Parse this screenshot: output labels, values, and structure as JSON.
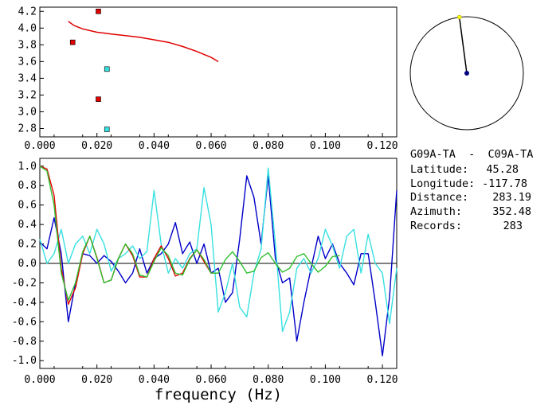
{
  "info": {
    "station_pair": "G09A-TA  -  C09A-TA",
    "latitude_label": "Latitude:",
    "latitude_value": "45.28",
    "longitude_label": "Longitude:",
    "longitude_value": "-117.78",
    "distance_label": "Distance:",
    "distance_value": "283.19",
    "azimuth_label": "Azimuth:",
    "azimuth_value": "352.48",
    "records_label": "Records:",
    "records_value": "283"
  },
  "colors": {
    "red": "#e00000",
    "blue": "#0000c8",
    "cyan": "#38e0e0",
    "green": "#30c030",
    "yellow": "#ffff00",
    "navy": "#000080"
  },
  "chart_data": [
    {
      "type": "scatter",
      "xlabel": "",
      "ylabel": "",
      "xlim": [
        0,
        0.125
      ],
      "ylim": [
        2.7,
        4.25
      ],
      "x_ticks": [
        "0.000",
        "0.020",
        "0.040",
        "0.060",
        "0.080",
        "0.100",
        "0.120"
      ],
      "y_ticks": [
        "2.8",
        "3.0",
        "3.2",
        "3.4",
        "3.6",
        "3.8",
        "4.0",
        "4.2"
      ],
      "curve": {
        "x": [
          0.01,
          0.012,
          0.015,
          0.02,
          0.025,
          0.03,
          0.035,
          0.04,
          0.045,
          0.05,
          0.055,
          0.06,
          0.0625
        ],
        "y": [
          4.08,
          4.03,
          3.99,
          3.95,
          3.93,
          3.91,
          3.89,
          3.86,
          3.83,
          3.78,
          3.72,
          3.65,
          3.6
        ]
      },
      "red_points": {
        "x": [
          0.0115,
          0.0205,
          0.0205
        ],
        "y": [
          3.83,
          4.2,
          3.15
        ]
      },
      "cyan_points": {
        "x": [
          0.0235,
          0.0235
        ],
        "y": [
          3.51,
          2.79
        ]
      }
    },
    {
      "type": "line",
      "xlabel": "frequency (Hz)",
      "ylabel": "",
      "xlim": [
        0,
        0.125
      ],
      "ylim": [
        -1.08,
        1.08
      ],
      "x_ticks": [
        "0.000",
        "0.020",
        "0.040",
        "0.060",
        "0.080",
        "0.100",
        "0.120"
      ],
      "y_ticks": [
        "1.0",
        "0.8",
        "0.6",
        "0.4",
        "0.2",
        "0.0",
        "-0.2",
        "-0.4",
        "-0.6",
        "-0.8",
        "-1.0"
      ],
      "series": [
        {
          "color": "blue",
          "x": [
            0.0,
            0.0025,
            0.005,
            0.0075,
            0.01,
            0.0125,
            0.015,
            0.0175,
            0.02,
            0.0225,
            0.025,
            0.0275,
            0.03,
            0.0325,
            0.035,
            0.0375,
            0.04,
            0.0425,
            0.045,
            0.0475,
            0.05,
            0.0525,
            0.055,
            0.0575,
            0.06,
            0.0625,
            0.065,
            0.0675,
            0.07,
            0.0725,
            0.075,
            0.0775,
            0.08,
            0.0825,
            0.085,
            0.0875,
            0.09,
            0.0925,
            0.095,
            0.0975,
            0.1,
            0.1025,
            0.105,
            0.1075,
            0.11,
            0.1125,
            0.115,
            0.1175,
            0.12,
            0.1225,
            0.125
          ],
          "y": [
            0.22,
            0.15,
            0.47,
            0.1,
            -0.6,
            -0.2,
            0.1,
            0.08,
            0.0,
            0.08,
            0.02,
            -0.08,
            -0.2,
            -0.1,
            0.15,
            -0.1,
            0.05,
            0.1,
            0.2,
            0.42,
            0.1,
            0.22,
            0.0,
            0.2,
            -0.1,
            -0.05,
            -0.4,
            -0.3,
            0.25,
            0.9,
            0.68,
            0.2,
            0.9,
            0.05,
            -0.2,
            -0.15,
            -0.8,
            -0.4,
            -0.05,
            0.28,
            0.05,
            0.2,
            0.0,
            -0.1,
            -0.22,
            0.1,
            0.1,
            -0.4,
            -0.95,
            -0.35,
            0.75
          ]
        },
        {
          "color": "cyan",
          "x": [
            0.0,
            0.0025,
            0.005,
            0.0075,
            0.01,
            0.0125,
            0.015,
            0.0175,
            0.02,
            0.0225,
            0.025,
            0.0275,
            0.03,
            0.0325,
            0.035,
            0.0375,
            0.04,
            0.0425,
            0.045,
            0.0475,
            0.05,
            0.0525,
            0.055,
            0.0575,
            0.06,
            0.0625,
            0.065,
            0.0675,
            0.07,
            0.0725,
            0.075,
            0.0775,
            0.08,
            0.0825,
            0.085,
            0.0875,
            0.09,
            0.0925,
            0.095,
            0.0975,
            0.1,
            0.1025,
            0.105,
            0.1075,
            0.11,
            0.1125,
            0.115,
            0.1175,
            0.12,
            0.1225,
            0.125
          ],
          "y": [
            0.25,
            0.0,
            0.1,
            0.35,
            0.0,
            0.2,
            0.28,
            0.1,
            0.35,
            0.2,
            -0.08,
            0.05,
            0.1,
            0.18,
            0.05,
            0.12,
            0.75,
            0.2,
            -0.1,
            0.05,
            -0.05,
            0.1,
            0.15,
            0.78,
            0.4,
            -0.5,
            -0.3,
            0.0,
            -0.45,
            -0.55,
            -0.1,
            0.15,
            0.98,
            0.2,
            -0.7,
            -0.5,
            -0.05,
            0.05,
            -0.1,
            0.05,
            0.35,
            0.18,
            -0.05,
            0.28,
            0.35,
            -0.1,
            0.3,
            0.0,
            -0.1,
            -0.62,
            -0.05
          ]
        },
        {
          "color": "red",
          "x": [
            0.0,
            0.0025,
            0.005,
            0.0075,
            0.01,
            0.0125,
            0.015,
            0.0175,
            0.02,
            0.0225,
            0.025,
            0.0275,
            0.03,
            0.0325,
            0.035,
            0.0375,
            0.04,
            0.0425,
            0.045,
            0.0475,
            0.05,
            0.0525,
            0.055,
            0.0575,
            0.06,
            0.0625
          ],
          "y": [
            1.0,
            0.97,
            0.7,
            -0.05,
            -0.42,
            -0.25,
            0.1,
            0.28,
            0.06,
            -0.2,
            -0.17,
            0.05,
            0.2,
            0.08,
            -0.14,
            -0.14,
            0.05,
            0.18,
            0.05,
            -0.13,
            -0.1,
            0.05,
            0.14,
            0.02,
            -0.1,
            -0.1
          ]
        },
        {
          "color": "green",
          "x": [
            0.0,
            0.0025,
            0.005,
            0.0075,
            0.01,
            0.0125,
            0.015,
            0.0175,
            0.02,
            0.0225,
            0.025,
            0.0275,
            0.03,
            0.0325,
            0.035,
            0.0375,
            0.04,
            0.0425,
            0.045,
            0.0475,
            0.05,
            0.0525,
            0.055,
            0.0575,
            0.06,
            0.0625,
            0.065,
            0.0675,
            0.07,
            0.0725,
            0.075,
            0.0775,
            0.08,
            0.0825,
            0.085,
            0.0875,
            0.09,
            0.0925,
            0.095,
            0.0975,
            0.1,
            0.1025,
            0.105
          ],
          "y": [
            1.0,
            0.95,
            0.6,
            -0.1,
            -0.38,
            -0.2,
            0.12,
            0.28,
            0.05,
            -0.2,
            -0.17,
            0.05,
            0.2,
            0.1,
            -0.12,
            -0.14,
            0.02,
            0.16,
            0.08,
            -0.1,
            -0.12,
            0.04,
            0.14,
            0.04,
            -0.1,
            -0.1,
            0.04,
            0.12,
            0.02,
            -0.1,
            -0.08,
            0.06,
            0.11,
            0.0,
            -0.09,
            -0.05,
            0.07,
            0.1,
            0.0,
            -0.09,
            -0.03,
            0.07,
            0.08
          ]
        }
      ]
    }
  ]
}
